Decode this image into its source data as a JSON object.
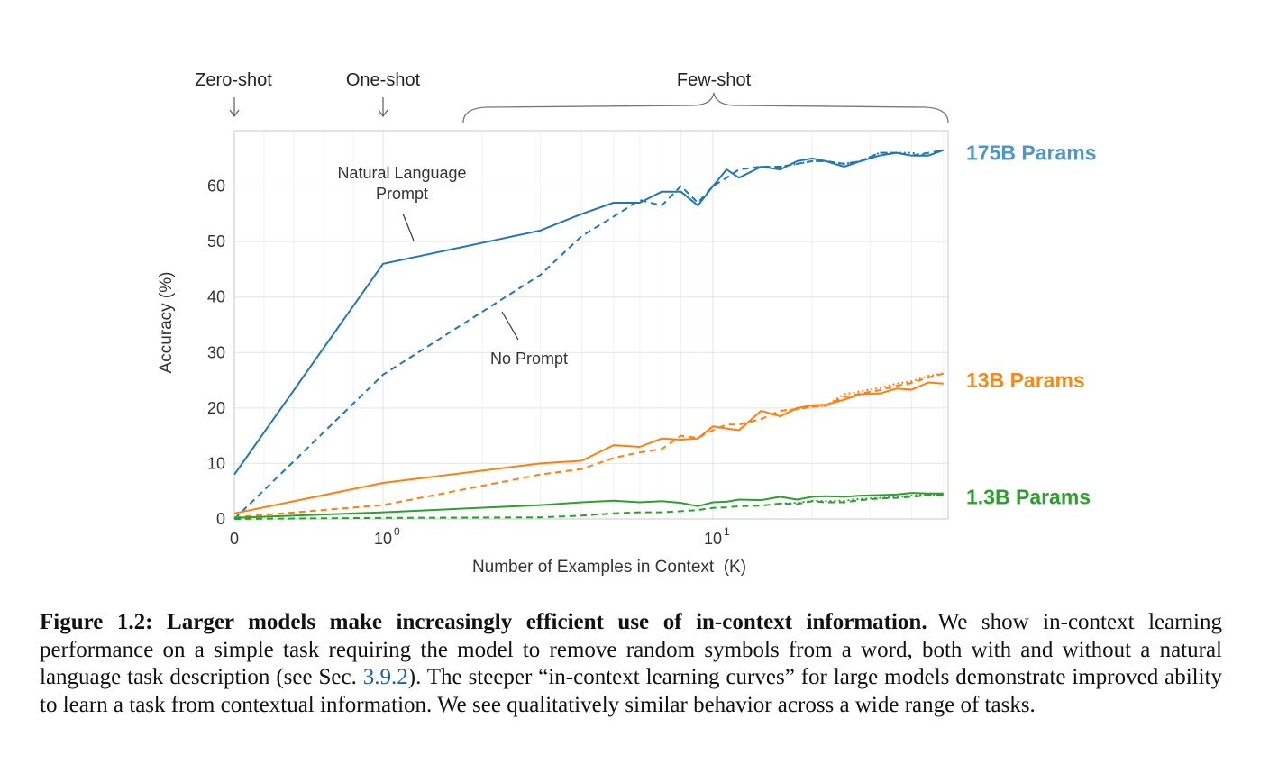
{
  "chart_data": {
    "type": "line",
    "title": "",
    "xlabel": "Number of Examples in Context  (K)",
    "ylabel": "Accuracy (%)",
    "x_scale": "symlog",
    "xlim": [
      0,
      50
    ],
    "ylim": [
      0,
      70
    ],
    "x_ticks": [
      {
        "value": 0,
        "base": "0",
        "exp": ""
      },
      {
        "value": 1,
        "base": "10",
        "exp": "0"
      },
      {
        "value": 10,
        "base": "10",
        "exp": "1"
      }
    ],
    "y_ticks": [
      0,
      10,
      20,
      30,
      40,
      50,
      60
    ],
    "grid": true,
    "top_labels": {
      "zero_shot": "Zero-shot",
      "one_shot": "One-shot",
      "few_shot": "Few-shot"
    },
    "annotations": {
      "prompt_line1": "Natural Language",
      "prompt_line2": "Prompt",
      "no_prompt": "No Prompt"
    },
    "groups": [
      {
        "label": "175B Params",
        "color": "#1f77b4",
        "label_color": "#4b97c9",
        "label_y": 66
      },
      {
        "label": "13B Params",
        "color": "#ff7f0e",
        "label_color": "#f08a1c",
        "label_y": 25
      },
      {
        "label": "1.3B Params",
        "color": "#2ca02c",
        "label_color": "#2ca02c",
        "label_y": 4
      }
    ],
    "series": [
      {
        "group": 0,
        "style": "solid",
        "x": [
          0,
          1,
          3,
          4,
          5,
          6,
          7,
          8,
          9,
          10,
          11,
          12,
          14,
          16,
          18,
          20,
          22,
          25,
          28,
          32,
          36,
          40,
          45,
          50
        ],
        "y": [
          8,
          46,
          52,
          55,
          57,
          57,
          59,
          59,
          56.5,
          60,
          63,
          61.5,
          63.5,
          63,
          64.5,
          65,
          64.5,
          63.5,
          64.5,
          65.5,
          66,
          65.5,
          65.5,
          66.5
        ]
      },
      {
        "group": 0,
        "style": "dashed",
        "x": [
          0,
          1,
          3,
          4,
          5,
          6,
          7,
          8,
          9,
          10,
          11,
          12,
          14,
          16,
          18,
          20,
          22,
          25,
          28,
          32,
          36,
          40,
          45,
          50
        ],
        "y": [
          0,
          26,
          44,
          51,
          54.5,
          57.5,
          56.5,
          60,
          57,
          60,
          61.5,
          63,
          63.5,
          63.5,
          64,
          64.5,
          64.5,
          64,
          64.5,
          66,
          66,
          65.5,
          66,
          66.5
        ]
      },
      {
        "group": 0,
        "style": "dotted",
        "x": [
          16,
          18,
          20,
          22,
          25,
          28,
          32,
          36,
          40,
          45,
          50
        ],
        "y": [
          63.5,
          64,
          64.5,
          64.5,
          64,
          64.5,
          66,
          66,
          66,
          65.5,
          66.5
        ]
      },
      {
        "group": 1,
        "style": "solid",
        "x": [
          0,
          1,
          3,
          4,
          5,
          6,
          7,
          8,
          9,
          10,
          11,
          12,
          14,
          16,
          18,
          20,
          22,
          25,
          28,
          32,
          36,
          40,
          45,
          50
        ],
        "y": [
          1,
          6.5,
          10,
          10.5,
          13.3,
          13,
          14.5,
          14.3,
          14.5,
          16.7,
          16.3,
          16,
          19.5,
          18.5,
          20,
          20.5,
          20.6,
          21.5,
          22.5,
          22.6,
          23.5,
          23.3,
          24.6,
          24.4
        ]
      },
      {
        "group": 1,
        "style": "dashed",
        "x": [
          0,
          1,
          3,
          4,
          5,
          6,
          7,
          8,
          9,
          10,
          11,
          12,
          14,
          16,
          18,
          20,
          22,
          25,
          28,
          32,
          36,
          40,
          45,
          50
        ],
        "y": [
          0.3,
          2.5,
          8,
          9,
          11,
          12,
          12.6,
          15,
          14.6,
          16,
          17,
          17,
          18,
          19.5,
          19.8,
          20.2,
          20.4,
          22,
          22.6,
          23.2,
          24,
          24.5,
          25.5,
          26.2
        ]
      },
      {
        "group": 1,
        "style": "dotted",
        "x": [
          16,
          18,
          20,
          22,
          25,
          28,
          32,
          36,
          40,
          45,
          50
        ],
        "y": [
          19.5,
          19.8,
          20.2,
          20.4,
          22.5,
          23,
          23.6,
          24.4,
          24.8,
          25.8,
          26.2
        ]
      },
      {
        "group": 2,
        "style": "solid",
        "x": [
          0,
          1,
          3,
          4,
          5,
          6,
          7,
          8,
          9,
          10,
          11,
          12,
          14,
          16,
          18,
          20,
          22,
          25,
          28,
          32,
          36,
          40,
          45,
          50
        ],
        "y": [
          0.2,
          1.2,
          2.5,
          3,
          3.3,
          3,
          3.2,
          2.9,
          2.3,
          3,
          3.1,
          3.5,
          3.4,
          4,
          3.5,
          4,
          4.1,
          4,
          4.2,
          4.3,
          4.4,
          4.7,
          4.6,
          4.6
        ]
      },
      {
        "group": 2,
        "style": "dashed",
        "x": [
          0,
          1,
          3,
          4,
          5,
          6,
          7,
          8,
          9,
          10,
          11,
          12,
          14,
          16,
          18,
          20,
          22,
          25,
          28,
          32,
          36,
          40,
          45,
          50
        ],
        "y": [
          0,
          0.2,
          0.3,
          0.6,
          1,
          1.2,
          1.2,
          1.4,
          1.6,
          2,
          2.1,
          2.3,
          2.4,
          2.8,
          2.7,
          3.2,
          3,
          3,
          3.4,
          3.7,
          3.8,
          4,
          4.3,
          4.3
        ]
      },
      {
        "group": 2,
        "style": "dotted",
        "x": [
          16,
          18,
          20,
          22,
          25,
          28,
          32,
          36,
          40,
          45,
          50
        ],
        "y": [
          2.8,
          2.9,
          3.3,
          3.2,
          3.3,
          3.6,
          3.8,
          4,
          4.2,
          4.4,
          4.3
        ]
      }
    ]
  },
  "caption": {
    "lead": "Figure 1.2: Larger models make increasingly efficient use of in-context information.",
    "text1": "We show in-context learning performance on a simple task requiring the model to remove random symbols from a word, both with and without a natural language task description (see Sec. ",
    "ref": "3.9.2",
    "text2": "). The steeper “in-context learning curves” for large models demonstrate improved ability to learn a task from contextual information. We see qualitatively similar behavior across a wide range of tasks."
  }
}
